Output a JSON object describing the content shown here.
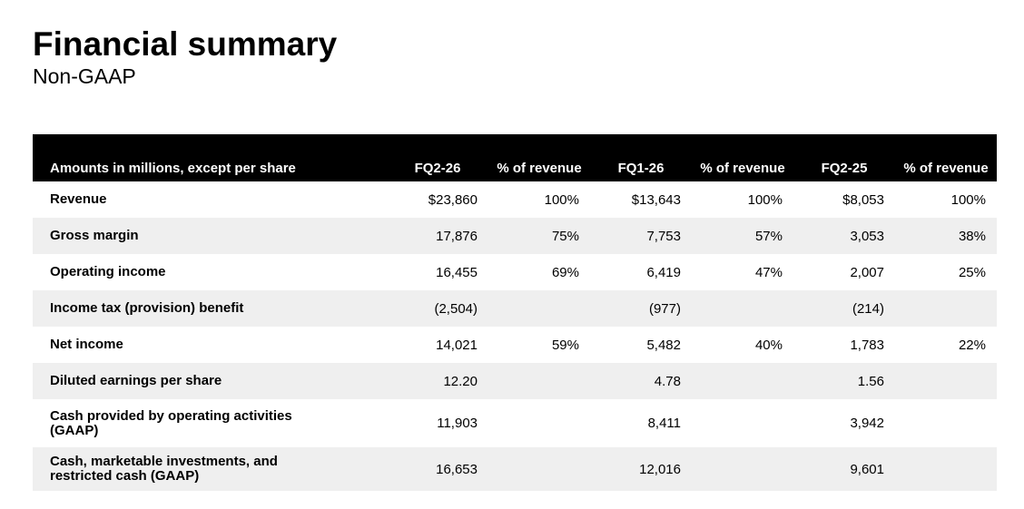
{
  "slide": {
    "title": "Financial summary",
    "subtitle": "Non-GAAP"
  },
  "table": {
    "header": {
      "label": "Amounts in millions, except per share",
      "columns": [
        "FQ2-26",
        "% of revenue",
        "FQ1-26",
        "% of revenue",
        "FQ2-25",
        "% of revenue"
      ]
    },
    "rows": [
      {
        "label": "Revenue",
        "values": [
          "$23,860",
          "100%",
          "$13,643",
          "100%",
          "$8,053",
          "100%"
        ]
      },
      {
        "label": "Gross margin",
        "values": [
          "17,876",
          "75%",
          "7,753",
          "57%",
          "3,053",
          "38%"
        ]
      },
      {
        "label": "Operating income",
        "values": [
          "16,455",
          "69%",
          "6,419",
          "47%",
          "2,007",
          "25%"
        ]
      },
      {
        "label": "Income tax (provision) benefit",
        "values": [
          "(2,504)",
          "",
          "(977)",
          "",
          "(214)",
          ""
        ]
      },
      {
        "label": "Net income",
        "values": [
          "14,021",
          "59%",
          "5,482",
          "40%",
          "1,783",
          "22%"
        ]
      },
      {
        "label": "Diluted earnings per share",
        "values": [
          "12.20",
          "",
          "4.78",
          "",
          "1.56",
          ""
        ]
      },
      {
        "label": "Cash provided by operating activities (GAAP)",
        "values": [
          "11,903",
          "",
          "8,411",
          "",
          "3,942",
          ""
        ]
      },
      {
        "label": "Cash, marketable investments, and restricted cash (GAAP)",
        "values": [
          "16,653",
          "",
          "12,016",
          "",
          "9,601",
          ""
        ]
      }
    ]
  },
  "colors": {
    "header_bg": "#000000",
    "header_text": "#ffffff",
    "row_stripe": "#efefef",
    "text": "#000000"
  }
}
